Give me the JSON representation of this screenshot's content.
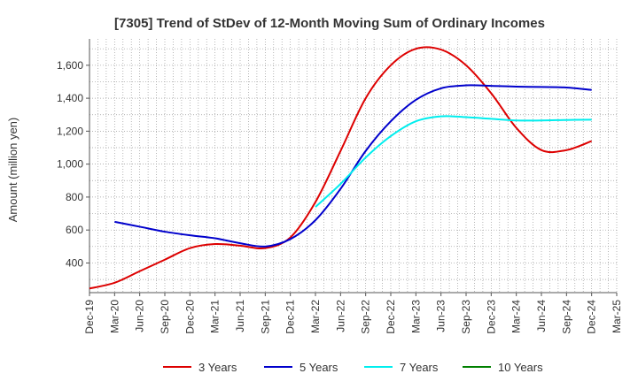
{
  "chart_data": {
    "type": "line",
    "title": "[7305]  Trend of StDev of 12-Month Moving Sum of Ordinary Incomes",
    "xlabel": "",
    "ylabel": "Amount (million yen)",
    "ylim": [
      220,
      1760
    ],
    "y_ticks": [
      400,
      600,
      800,
      1000,
      1200,
      1400,
      1600
    ],
    "y_tick_labels": [
      "400",
      "600",
      "800",
      "1,000",
      "1,200",
      "1,400",
      "1,600"
    ],
    "x_ticks": [
      "Dec-19",
      "Mar-20",
      "Jun-20",
      "Sep-20",
      "Dec-20",
      "Mar-21",
      "Jun-21",
      "Sep-21",
      "Dec-21",
      "Mar-22",
      "Jun-22",
      "Sep-22",
      "Dec-22",
      "Mar-23",
      "Jun-23",
      "Sep-23",
      "Dec-23",
      "Mar-24",
      "Jun-24",
      "Sep-24",
      "Dec-24",
      "Mar-25"
    ],
    "grid": true,
    "legend_position": "bottom",
    "series": [
      {
        "name": "3 Years",
        "color": "#dd0000",
        "points": [
          [
            0,
            245
          ],
          [
            1,
            280
          ],
          [
            2,
            350
          ],
          [
            3,
            420
          ],
          [
            4,
            490
          ],
          [
            5,
            515
          ],
          [
            6,
            505
          ],
          [
            7,
            490
          ],
          [
            8,
            555
          ],
          [
            9,
            770
          ],
          [
            10,
            1080
          ],
          [
            11,
            1400
          ],
          [
            12,
            1600
          ],
          [
            13,
            1700
          ],
          [
            14,
            1695
          ],
          [
            15,
            1600
          ],
          [
            16,
            1430
          ],
          [
            17,
            1220
          ],
          [
            18,
            1085
          ],
          [
            19,
            1085
          ],
          [
            20,
            1140
          ]
        ]
      },
      {
        "name": "5 Years",
        "color": "#0000cc",
        "points": [
          [
            1,
            650
          ],
          [
            2,
            620
          ],
          [
            3,
            590
          ],
          [
            4,
            568
          ],
          [
            5,
            550
          ],
          [
            6,
            520
          ],
          [
            7,
            500
          ],
          [
            8,
            545
          ],
          [
            9,
            660
          ],
          [
            10,
            850
          ],
          [
            11,
            1080
          ],
          [
            12,
            1260
          ],
          [
            13,
            1390
          ],
          [
            14,
            1460
          ],
          [
            15,
            1478
          ],
          [
            16,
            1475
          ],
          [
            17,
            1470
          ],
          [
            18,
            1468
          ],
          [
            19,
            1465
          ],
          [
            20,
            1450
          ]
        ]
      },
      {
        "name": "7 Years",
        "color": "#00eeee",
        "points": [
          [
            9,
            740
          ],
          [
            10,
            880
          ],
          [
            11,
            1040
          ],
          [
            12,
            1170
          ],
          [
            13,
            1260
          ],
          [
            14,
            1290
          ],
          [
            15,
            1285
          ],
          [
            16,
            1275
          ],
          [
            17,
            1265
          ],
          [
            18,
            1265
          ],
          [
            19,
            1268
          ],
          [
            20,
            1270
          ]
        ]
      },
      {
        "name": "10 Years",
        "color": "#008000",
        "points": []
      }
    ]
  }
}
